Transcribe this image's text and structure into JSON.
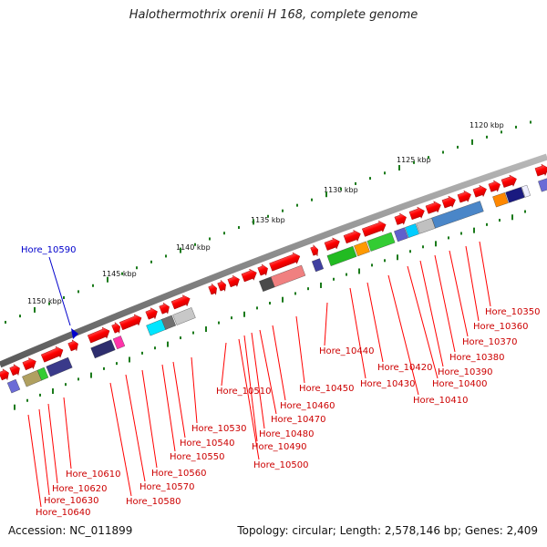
{
  "title": "Halothermothrix orenii H 168, complete genome",
  "footer": {
    "accession": "Accession: NC_011899",
    "topology": "Topology: circular; Length: 2,578,146 bp; Genes: 2,409"
  },
  "colors": {
    "backbone": "#8a8a8a",
    "forward_gene": "#ff0000",
    "tick": "#1a7a1a",
    "label": "#cc0000",
    "highlight_label": "#0000cc"
  },
  "ruler": [
    "1120 kbp",
    "1125 kbp",
    "1130 kbp",
    "1135 kbp",
    "1140 kbp",
    "1145 kbp",
    "1150 kbp"
  ],
  "highlight": {
    "label": "Hore_10590"
  },
  "gene_labels": [
    "Hore_10350",
    "Hore_10360",
    "Hore_10370",
    "Hore_10380",
    "Hore_10390",
    "Hore_10400",
    "Hore_10410",
    "Hore_10420",
    "Hore_10430",
    "Hore_10440",
    "Hore_10450",
    "Hore_10460",
    "Hore_10470",
    "Hore_10480",
    "Hore_10490",
    "Hore_10500",
    "Hore_10510",
    "Hore_10530",
    "Hore_10540",
    "Hore_10550",
    "Hore_10560",
    "Hore_10570",
    "Hore_10580",
    "Hore_10610",
    "Hore_10620",
    "Hore_10630",
    "Hore_10640"
  ]
}
